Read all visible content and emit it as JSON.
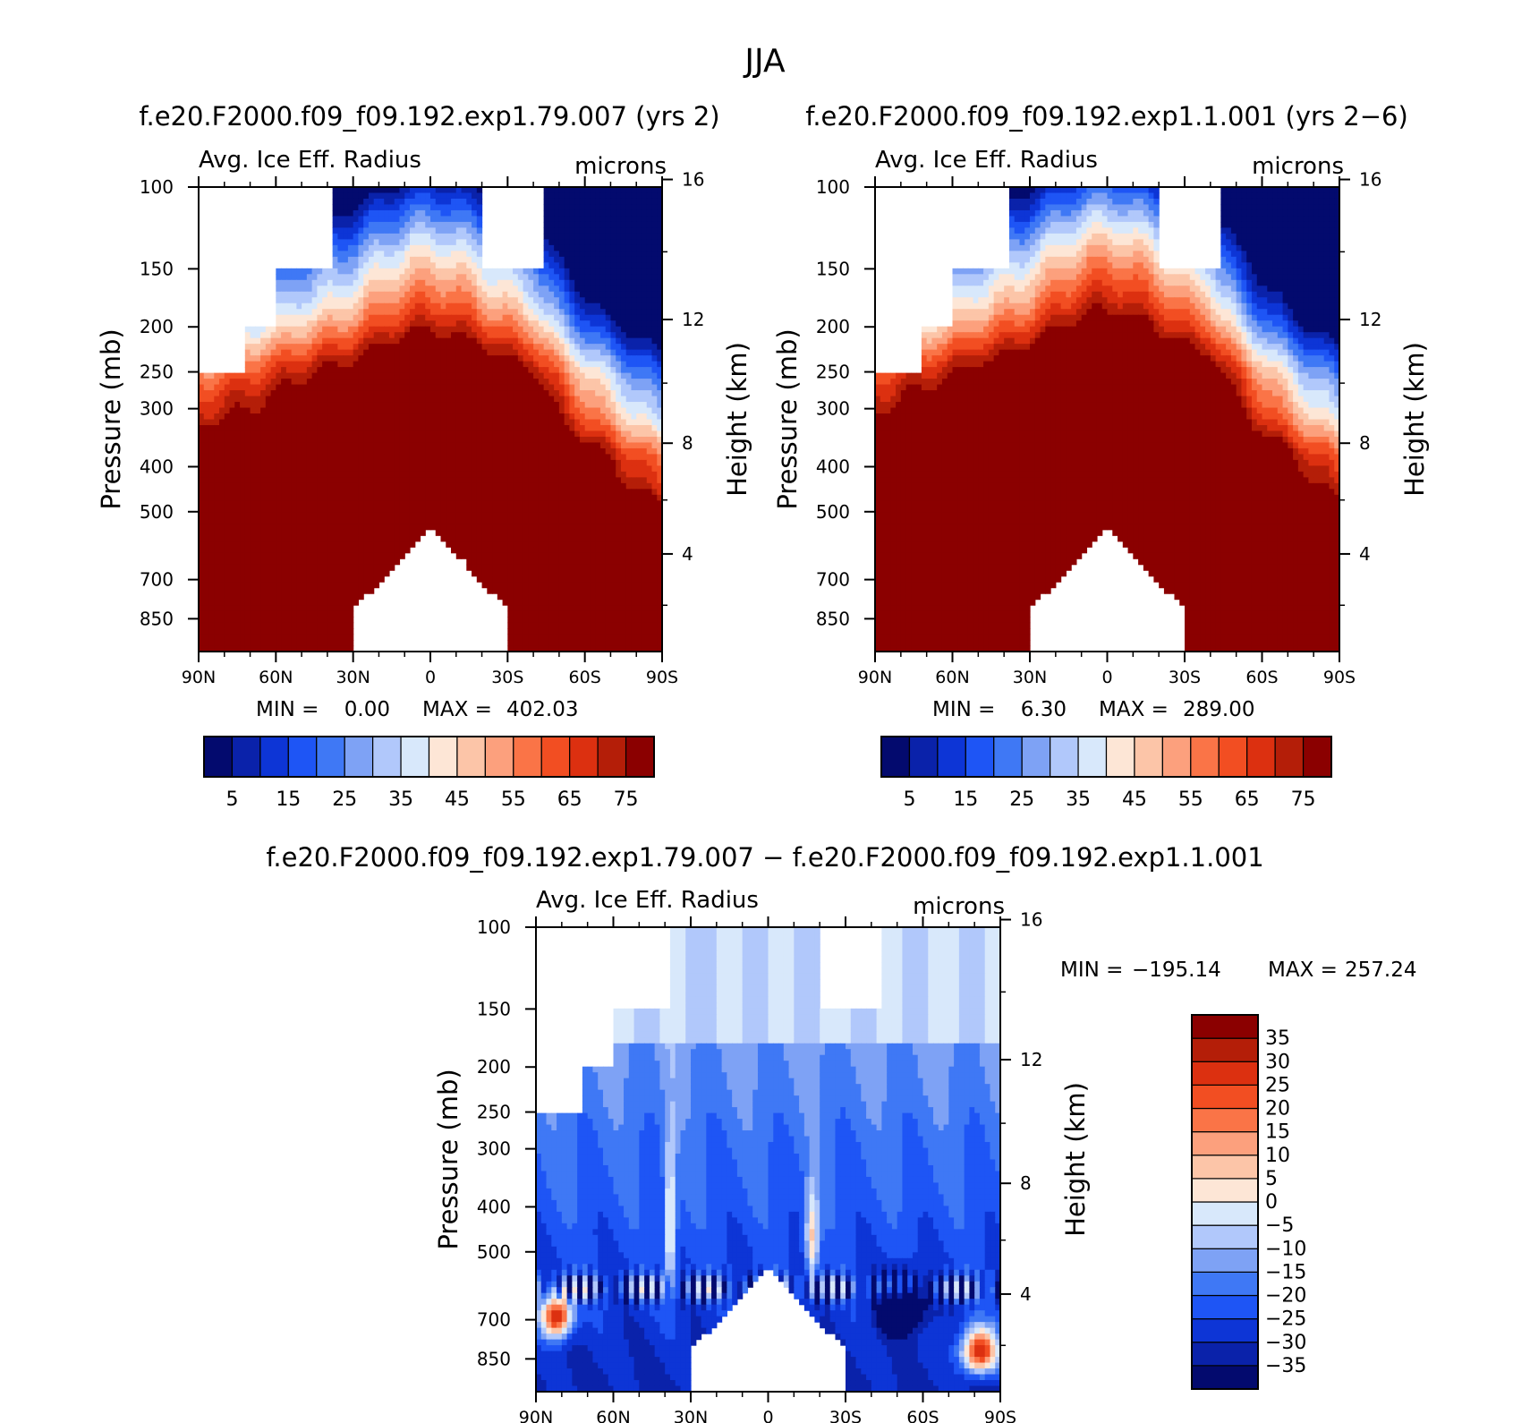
{
  "figure": {
    "title": "JJA",
    "diff_title": "f.e20.F2000.f09_f09.192.exp1.79.007 − f.e20.F2000.f09_f09.192.exp1.1.001"
  },
  "colors": {
    "abs_palette": [
      "#030a6e",
      "#0a22aa",
      "#0d35d6",
      "#1e55f5",
      "#3f78f5",
      "#7ea2f5",
      "#b1c8fb",
      "#d8e8fb",
      "#fde6d6",
      "#fcc5a8",
      "#fca07d",
      "#fa7447",
      "#f24e22",
      "#dc3010",
      "#b41e08",
      "#8b0000"
    ],
    "diff_palette": [
      "#030a6e",
      "#0a22aa",
      "#0d35d6",
      "#1e55f5",
      "#3f78f5",
      "#7ea2f5",
      "#b1c8fb",
      "#d8e8fb",
      "#fde6d6",
      "#fcc5a8",
      "#fca07d",
      "#fa7447",
      "#f24e22",
      "#dc3010",
      "#b41e08",
      "#8b0000"
    ],
    "missing": "#ffffff"
  },
  "chart_data": [
    {
      "type": "heatmap",
      "id": "run1",
      "title": "f.e20.F2000.f09_f09.192.exp1.79.007 (yrs 2)",
      "field": "Avg. Ice Eff. Radius",
      "units": "microns",
      "ylabel": "Pressure (mb)",
      "ylabel_right": "Height (km)",
      "x_ticks": [
        "90N",
        "60N",
        "30N",
        "0",
        "30S",
        "60S",
        "90S"
      ],
      "x_range": [
        90,
        -90
      ],
      "p_ticks": [
        100,
        150,
        200,
        250,
        300,
        400,
        500,
        700,
        850
      ],
      "p_range": [
        100,
        1000
      ],
      "height_ticks": [
        4,
        8,
        12,
        16
      ],
      "min_label": "MIN =",
      "min_value": "0.00",
      "max_label": "MAX =",
      "max_value": "402.03",
      "levels": [
        5,
        10,
        15,
        20,
        25,
        30,
        35,
        40,
        45,
        50,
        55,
        60,
        65,
        70,
        75
      ],
      "colorbar_labels": [
        "5",
        "15",
        "25",
        "35",
        "45",
        "55",
        "65",
        "75"
      ],
      "regime": "abs",
      "mod": 0.0
    },
    {
      "type": "heatmap",
      "id": "run2",
      "title": "f.e20.F2000.f09_f09.192.exp1.1.001 (yrs 2−6)",
      "field": "Avg. Ice Eff. Radius",
      "units": "microns",
      "ylabel": "Pressure (mb)",
      "ylabel_right": "Height (km)",
      "x_ticks": [
        "90N",
        "60N",
        "30N",
        "0",
        "30S",
        "60S",
        "90S"
      ],
      "x_range": [
        90,
        -90
      ],
      "p_ticks": [
        100,
        150,
        200,
        250,
        300,
        400,
        500,
        700,
        850
      ],
      "p_range": [
        100,
        1000
      ],
      "height_ticks": [
        4,
        8,
        12,
        16
      ],
      "min_label": "MIN =",
      "min_value": "6.30",
      "max_label": "MAX =",
      "max_value": "289.00",
      "levels": [
        5,
        10,
        15,
        20,
        25,
        30,
        35,
        40,
        45,
        50,
        55,
        60,
        65,
        70,
        75
      ],
      "colorbar_labels": [
        "5",
        "15",
        "25",
        "35",
        "45",
        "55",
        "65",
        "75"
      ],
      "regime": "abs",
      "mod": 1.0
    },
    {
      "type": "heatmap",
      "id": "diff",
      "title": "f.e20.F2000.f09_f09.192.exp1.79.007 − f.e20.F2000.f09_f09.192.exp1.1.001",
      "field": "Avg. Ice Eff. Radius",
      "units": "microns",
      "ylabel": "Pressure (mb)",
      "ylabel_right": "Height (km)",
      "x_ticks": [
        "90N",
        "60N",
        "30N",
        "0",
        "30S",
        "60S",
        "90S"
      ],
      "x_range": [
        90,
        -90
      ],
      "p_ticks": [
        100,
        150,
        200,
        250,
        300,
        400,
        500,
        700,
        850
      ],
      "p_range": [
        100,
        1000
      ],
      "height_ticks": [
        4,
        8,
        12,
        16
      ],
      "min_label": "MIN =",
      "min_value": "−195.14",
      "max_label": "MAX =",
      "max_value": "257.24",
      "levels": [
        -35,
        -30,
        -25,
        -20,
        -15,
        -10,
        -5,
        0,
        5,
        10,
        15,
        20,
        25,
        30,
        35
      ],
      "colorbar_labels": [
        "−35",
        "−30",
        "−25",
        "−20",
        "−15",
        "−10",
        "−5",
        "0",
        "5",
        "10",
        "15",
        "20",
        "25",
        "30",
        "35"
      ],
      "regime": "diff",
      "mod": 0.0
    }
  ]
}
